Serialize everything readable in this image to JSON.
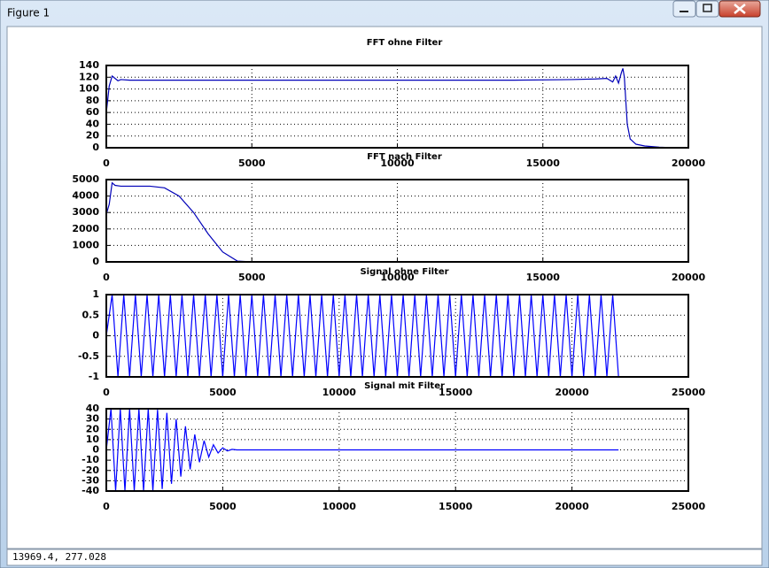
{
  "window": {
    "title": "Figure 1",
    "status": "13969.4,  277.028"
  },
  "chart_data": [
    {
      "type": "line",
      "title": "FFT ohne Filter",
      "color": "#0000b8",
      "grid": true,
      "xlim": [
        0,
        20000
      ],
      "xticks": [
        0,
        5000,
        10000,
        15000,
        20000
      ],
      "ylim": [
        0,
        140
      ],
      "yticks": [
        0,
        20,
        40,
        60,
        80,
        100,
        120,
        140
      ],
      "x": [
        0,
        100,
        200,
        300,
        400,
        500,
        800,
        2000,
        5000,
        8000,
        11000,
        14000,
        16000,
        16800,
        17200,
        17400,
        17500,
        17600,
        17700,
        17750,
        17800,
        17850,
        17900,
        18000,
        18200,
        18500,
        19000,
        19500
      ],
      "values": [
        60,
        105,
        122,
        118,
        114,
        116,
        115,
        115,
        115,
        115,
        115,
        115,
        116,
        117,
        118,
        112,
        122,
        110,
        128,
        135,
        120,
        80,
        40,
        15,
        6,
        3,
        1,
        0
      ]
    },
    {
      "type": "line",
      "title": "FFT nach Filter",
      "color": "#0000b8",
      "grid": true,
      "xlim": [
        0,
        20000
      ],
      "xticks": [
        0,
        5000,
        10000,
        15000,
        20000
      ],
      "ylim": [
        0,
        5000
      ],
      "yticks": [
        0,
        1000,
        2000,
        3000,
        4000,
        5000
      ],
      "x": [
        0,
        100,
        200,
        300,
        500,
        1000,
        1500,
        2000,
        2500,
        3000,
        3500,
        4000,
        4500,
        5000,
        10000,
        15000,
        19500
      ],
      "values": [
        2900,
        3500,
        4800,
        4650,
        4600,
        4600,
        4600,
        4500,
        4000,
        3000,
        1700,
        600,
        50,
        0,
        0,
        0,
        0
      ]
    },
    {
      "type": "line",
      "title": "Signal ohne Filter",
      "color": "#0000ff",
      "grid": true,
      "xlim": [
        0,
        25000
      ],
      "xticks": [
        0,
        5000,
        10000,
        15000,
        20000,
        25000
      ],
      "ylim": [
        -1,
        1
      ],
      "yticks": [
        -1,
        -0.5,
        0,
        0.5,
        1
      ],
      "x": [
        0,
        250,
        500,
        750,
        1000,
        1250,
        1500,
        1750,
        2000,
        2250,
        2500,
        2750,
        3000,
        3250,
        3500,
        3750,
        4000,
        4250,
        4500,
        4750,
        5000,
        5250,
        5500,
        5750,
        6000,
        6250,
        6500,
        6750,
        7000,
        7250,
        7500,
        7750,
        8000,
        8250,
        8500,
        8750,
        9000,
        9250,
        9500,
        9750,
        10000,
        10250,
        10500,
        10750,
        11000,
        11250,
        11500,
        11750,
        12000,
        12250,
        12500,
        12750,
        13000,
        13250,
        13500,
        13750,
        14000,
        14250,
        14500,
        14750,
        15000,
        15250,
        15500,
        15750,
        16000,
        16250,
        16500,
        16750,
        17000,
        17250,
        17500,
        17750,
        18000,
        18250,
        18500,
        18750,
        19000,
        19250,
        19500,
        19750,
        20000,
        20250,
        20500,
        20750,
        21000,
        21250,
        21500,
        21750,
        22000
      ],
      "values": [
        0,
        1,
        -1,
        1,
        -1,
        1,
        -1,
        1,
        -1,
        1,
        -1,
        1,
        -1,
        1,
        -1,
        1,
        -1,
        1,
        -1,
        1,
        -1,
        1,
        -1,
        1,
        -1,
        1,
        -1,
        1,
        -1,
        1,
        -1,
        1,
        -1,
        1,
        -1,
        1,
        -1,
        1,
        -1,
        1,
        -1,
        1,
        -1,
        1,
        -1,
        1,
        -1,
        1,
        -1,
        1,
        -1,
        1,
        -1,
        1,
        -1,
        1,
        -1,
        1,
        -1,
        1,
        -1,
        1,
        -1,
        1,
        -1,
        1,
        -1,
        1,
        -1,
        1,
        -1,
        1,
        -1,
        1,
        -1,
        1,
        -1,
        1,
        -1,
        1,
        -1,
        1,
        -1,
        1,
        -1,
        1,
        -1,
        1,
        -1
      ]
    },
    {
      "type": "line",
      "title": "Signal mit Filter",
      "color": "#0000ff",
      "grid": true,
      "xlim": [
        0,
        25000
      ],
      "xticks": [
        0,
        5000,
        10000,
        15000,
        20000,
        25000
      ],
      "ylim": [
        -40,
        40
      ],
      "yticks": [
        -40,
        -30,
        -20,
        -10,
        0,
        10,
        20,
        30,
        40
      ],
      "x": [
        0,
        200,
        400,
        600,
        800,
        1000,
        1200,
        1400,
        1600,
        1800,
        2000,
        2200,
        2400,
        2600,
        2800,
        3000,
        3200,
        3400,
        3600,
        3800,
        4000,
        4200,
        4400,
        4600,
        4800,
        5000,
        5200,
        5400,
        5600,
        22000
      ],
      "values": [
        0,
        40,
        -40,
        40,
        -40,
        40,
        -40,
        40,
        -40,
        40,
        -40,
        39,
        -38,
        36,
        -33,
        30,
        -26,
        23,
        -19,
        15,
        -12,
        9,
        -7,
        5,
        -3,
        2,
        -1,
        0.5,
        0,
        0
      ]
    }
  ]
}
